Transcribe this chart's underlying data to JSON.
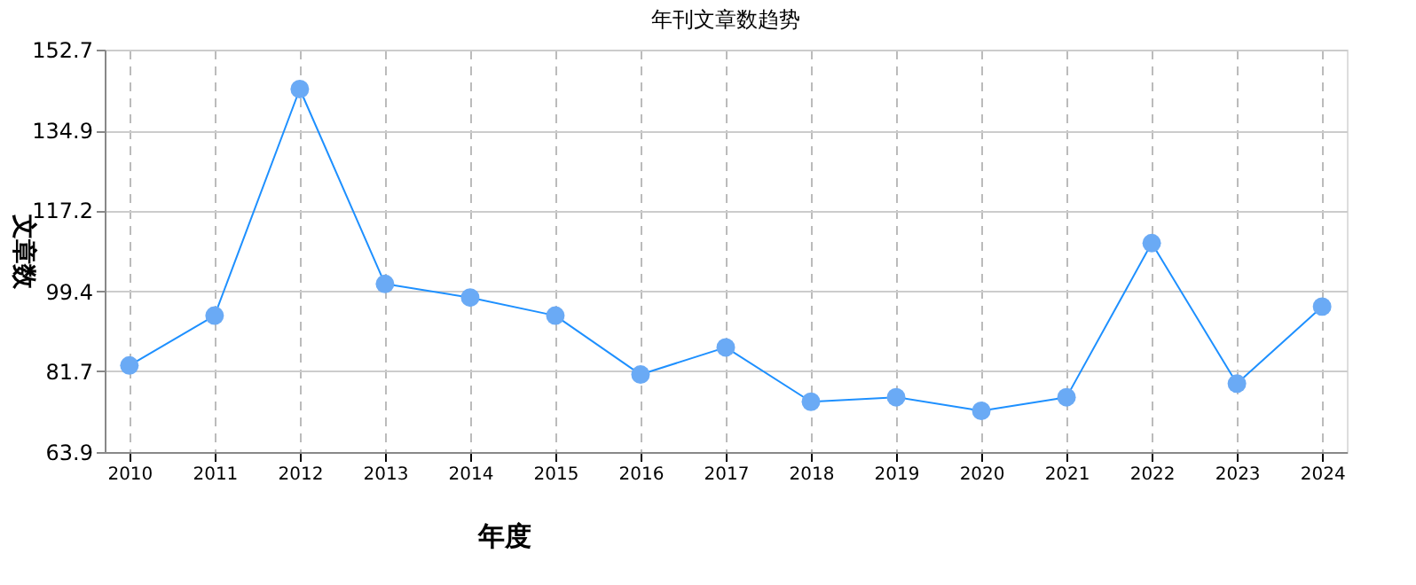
{
  "chart_data": {
    "type": "line",
    "title": "年刊文章数趋势",
    "xlabel": "年度",
    "ylabel": "文章数",
    "categories": [
      "2010",
      "2011",
      "2012",
      "2013",
      "2014",
      "2015",
      "2016",
      "2017",
      "2018",
      "2019",
      "2020",
      "2021",
      "2022",
      "2023",
      "2024"
    ],
    "series": [
      {
        "color": "#1e90ff",
        "values": [
          83,
          94,
          144,
          101,
          98,
          94,
          81,
          87,
          75,
          76,
          73,
          76,
          110,
          79,
          96
        ]
      }
    ],
    "ylim": [
      63.9,
      152.7
    ],
    "yticks": [
      63.9,
      81.7,
      99.4,
      117.2,
      134.9,
      152.7
    ],
    "grid": true,
    "marker": "circle",
    "line_style": "solid"
  }
}
